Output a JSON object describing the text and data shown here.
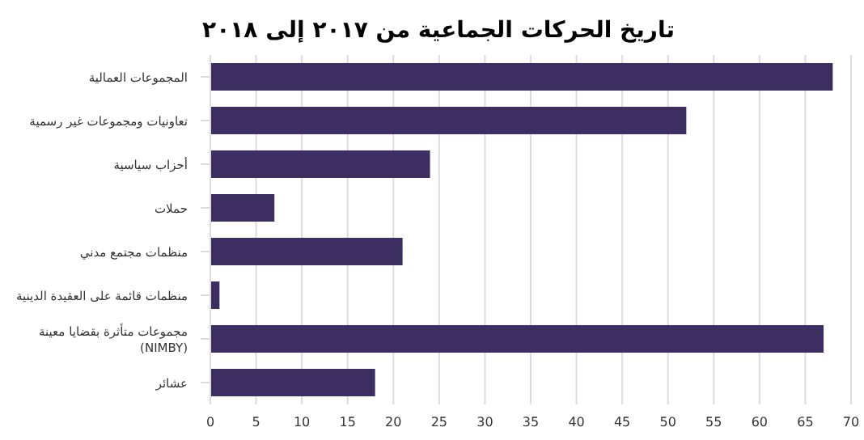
{
  "chart_data": {
    "type": "bar",
    "orientation": "horizontal",
    "title": "تاريخ الحركات الجماعية من ٢٠١٧ إلى ٢٠١٨",
    "categories": [
      "المجموعات العمالية",
      "تعاونيات ومجموعات غير رسمية",
      "أحزاب سياسية",
      "حملات",
      "منظمات مجتمع مدني",
      "منظمات قائمة على العقيدة الدينية",
      "مجموعات متأثرة بقضايا معينة\n(NIMBY)",
      "عشائر"
    ],
    "values": [
      68,
      52,
      24,
      7,
      21,
      1,
      67,
      18
    ],
    "color": "#3d2e62",
    "xlim": [
      0,
      70
    ],
    "xticks": [
      0,
      5,
      10,
      15,
      20,
      25,
      30,
      35,
      40,
      45,
      50,
      55,
      60,
      65,
      70
    ],
    "grid": "x",
    "legend": false
  }
}
